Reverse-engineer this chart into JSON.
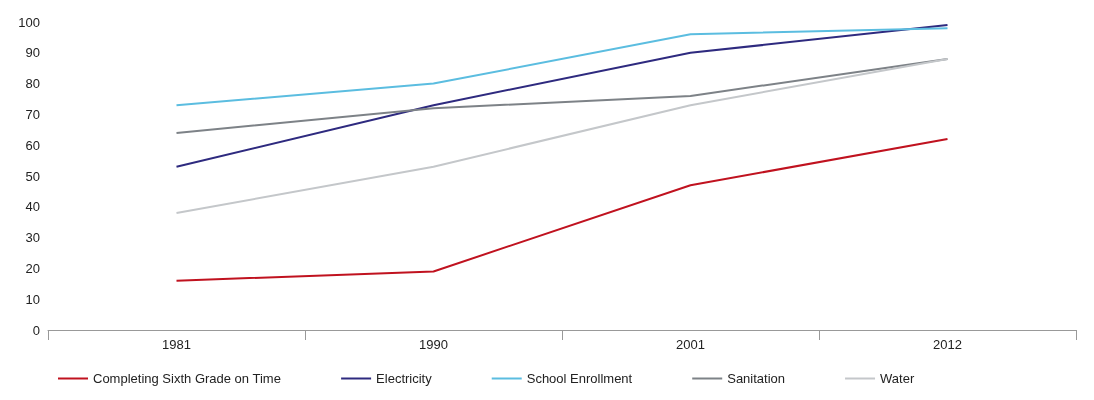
{
  "chart_data": {
    "type": "line",
    "categories": [
      "1981",
      "1990",
      "2001",
      "2012"
    ],
    "series": [
      {
        "name": "Completing Sixth Grade on Time",
        "color": "#c0121f",
        "values": [
          16,
          19,
          47,
          62
        ]
      },
      {
        "name": "Electricity",
        "color": "#2e2a7f",
        "values": [
          53,
          73,
          90,
          99
        ]
      },
      {
        "name": "School Enrollment",
        "color": "#5bbde0",
        "values": [
          73,
          80,
          96,
          98
        ]
      },
      {
        "name": "Sanitation",
        "color": "#7d8287",
        "values": [
          64,
          72,
          76,
          88
        ]
      },
      {
        "name": "Water",
        "color": "#c4c7ca",
        "values": [
          38,
          53,
          73,
          88
        ]
      }
    ],
    "ylim": [
      0,
      100
    ],
    "yticks": [
      0,
      10,
      20,
      30,
      40,
      50,
      60,
      70,
      80,
      90,
      100
    ],
    "grid": false,
    "legend": "bottom",
    "marker": "none",
    "line_style": "solid"
  }
}
